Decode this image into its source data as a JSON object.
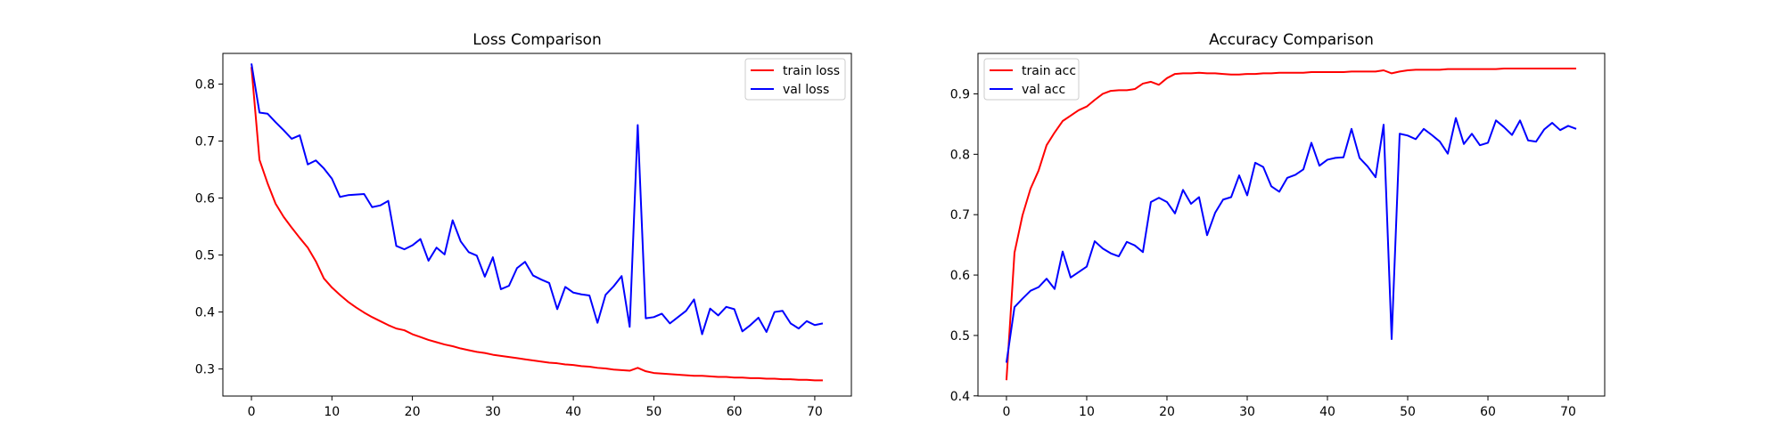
{
  "chart_data": [
    {
      "type": "line",
      "title": "Loss Comparison",
      "xlabel": "",
      "ylabel": "",
      "xlim": [
        -3.55,
        74.55
      ],
      "ylim": [
        0.2525,
        0.8538
      ],
      "xticks": [
        0,
        10,
        20,
        30,
        40,
        50,
        60,
        70
      ],
      "yticks": [
        0.3,
        0.4,
        0.5,
        0.6,
        0.7,
        0.8
      ],
      "legend": "top-right",
      "grid": false,
      "series": [
        {
          "name": "train loss",
          "color": "#ff0000",
          "values": [
            0.83,
            0.667,
            0.626,
            0.59,
            0.567,
            0.548,
            0.53,
            0.513,
            0.489,
            0.459,
            0.443,
            0.43,
            0.418,
            0.408,
            0.399,
            0.391,
            0.384,
            0.377,
            0.371,
            0.368,
            0.361,
            0.356,
            0.351,
            0.347,
            0.343,
            0.34,
            0.336,
            0.333,
            0.33,
            0.328,
            0.325,
            0.323,
            0.321,
            0.319,
            0.317,
            0.315,
            0.313,
            0.311,
            0.31,
            0.308,
            0.307,
            0.305,
            0.304,
            0.302,
            0.301,
            0.299,
            0.298,
            0.297,
            0.302,
            0.296,
            0.293,
            0.292,
            0.291,
            0.29,
            0.289,
            0.288,
            0.288,
            0.287,
            0.286,
            0.286,
            0.285,
            0.285,
            0.284,
            0.284,
            0.283,
            0.283,
            0.282,
            0.282,
            0.281,
            0.281,
            0.28,
            0.28
          ]
        },
        {
          "name": "val loss",
          "color": "#0000ff",
          "values": [
            0.836,
            0.75,
            0.748,
            0.733,
            0.719,
            0.704,
            0.71,
            0.659,
            0.666,
            0.652,
            0.634,
            0.602,
            0.605,
            0.606,
            0.607,
            0.584,
            0.587,
            0.595,
            0.516,
            0.51,
            0.517,
            0.528,
            0.49,
            0.513,
            0.501,
            0.561,
            0.524,
            0.505,
            0.499,
            0.462,
            0.496,
            0.44,
            0.446,
            0.477,
            0.488,
            0.464,
            0.457,
            0.451,
            0.405,
            0.444,
            0.434,
            0.431,
            0.429,
            0.381,
            0.43,
            0.445,
            0.463,
            0.374,
            0.728,
            0.389,
            0.391,
            0.397,
            0.38,
            0.391,
            0.402,
            0.422,
            0.361,
            0.406,
            0.394,
            0.409,
            0.405,
            0.366,
            0.377,
            0.39,
            0.365,
            0.4,
            0.402,
            0.38,
            0.371,
            0.384,
            0.377,
            0.38
          ]
        }
      ]
    },
    {
      "type": "line",
      "title": "Accuracy Comparison",
      "xlabel": "",
      "ylabel": "",
      "xlim": [
        -3.55,
        74.55
      ],
      "ylim": [
        0.3997,
        0.967
      ],
      "xticks": [
        0,
        10,
        20,
        30,
        40,
        50,
        60,
        70
      ],
      "yticks": [
        0.4,
        0.5,
        0.6,
        0.7,
        0.8,
        0.9
      ],
      "legend": "top-left",
      "grid": false,
      "series": [
        {
          "name": "train acc",
          "color": "#ff0000",
          "values": [
            0.426,
            0.637,
            0.699,
            0.743,
            0.773,
            0.815,
            0.836,
            0.855,
            0.864,
            0.873,
            0.879,
            0.89,
            0.9,
            0.905,
            0.906,
            0.906,
            0.908,
            0.917,
            0.92,
            0.915,
            0.926,
            0.933,
            0.934,
            0.934,
            0.935,
            0.934,
            0.934,
            0.933,
            0.932,
            0.932,
            0.933,
            0.933,
            0.934,
            0.934,
            0.935,
            0.935,
            0.935,
            0.935,
            0.936,
            0.936,
            0.936,
            0.936,
            0.936,
            0.937,
            0.937,
            0.937,
            0.937,
            0.939,
            0.934,
            0.937,
            0.939,
            0.94,
            0.94,
            0.94,
            0.94,
            0.941,
            0.941,
            0.941,
            0.941,
            0.941,
            0.941,
            0.941,
            0.942,
            0.942,
            0.942,
            0.942,
            0.942,
            0.942,
            0.942,
            0.942,
            0.942,
            0.942
          ]
        },
        {
          "name": "val acc",
          "color": "#0000ff",
          "values": [
            0.455,
            0.547,
            0.561,
            0.574,
            0.58,
            0.594,
            0.577,
            0.639,
            0.596,
            0.605,
            0.614,
            0.656,
            0.644,
            0.636,
            0.631,
            0.655,
            0.649,
            0.638,
            0.721,
            0.728,
            0.721,
            0.702,
            0.741,
            0.718,
            0.729,
            0.666,
            0.703,
            0.725,
            0.729,
            0.765,
            0.732,
            0.786,
            0.779,
            0.747,
            0.738,
            0.761,
            0.766,
            0.775,
            0.819,
            0.781,
            0.791,
            0.794,
            0.795,
            0.842,
            0.794,
            0.78,
            0.762,
            0.849,
            0.494,
            0.834,
            0.831,
            0.825,
            0.842,
            0.832,
            0.821,
            0.801,
            0.86,
            0.817,
            0.834,
            0.815,
            0.819,
            0.856,
            0.845,
            0.832,
            0.856,
            0.823,
            0.821,
            0.841,
            0.852,
            0.84,
            0.847,
            0.842
          ]
        }
      ]
    }
  ]
}
